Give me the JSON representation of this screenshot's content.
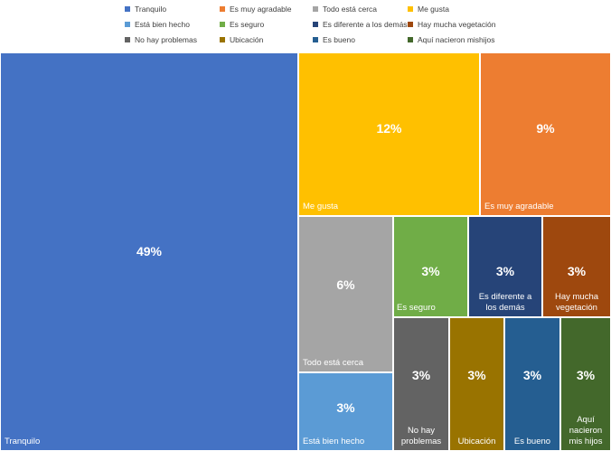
{
  "chart_data": {
    "type": "treemap",
    "title": "",
    "legend_position": "top",
    "series": [
      {
        "name": "Tranquilo",
        "value": 49,
        "label": "49%",
        "color": "#4472C4"
      },
      {
        "name": "Es muy agradable",
        "value": 9,
        "label": "9%",
        "color": "#ED7D31"
      },
      {
        "name": "Todo está cerca",
        "value": 6,
        "label": "6%",
        "color": "#A5A5A5"
      },
      {
        "name": "Me gusta",
        "value": 12,
        "label": "12%",
        "color": "#FFC000"
      },
      {
        "name": "Está bien hecho",
        "value": 3,
        "label": "3%",
        "color": "#5B9BD5"
      },
      {
        "name": "Es seguro",
        "value": 3,
        "label": "3%",
        "color": "#70AD47"
      },
      {
        "name": "Es diferente a los demás",
        "value": 3,
        "label": "3%",
        "color": "#264478"
      },
      {
        "name": "Hay mucha vegetación",
        "value": 3,
        "label": "3%",
        "color": "#9E480E"
      },
      {
        "name": "No hay problemas",
        "value": 3,
        "label": "3%",
        "color": "#636363"
      },
      {
        "name": "Ubicación",
        "value": 3,
        "label": "3%",
        "color": "#997300"
      },
      {
        "name": "Es bueno",
        "value": 3,
        "label": "3%",
        "color": "#255E91"
      },
      {
        "name": "Aquí nacieron mishijos",
        "value": 3,
        "label": "3%",
        "color": "#43682B"
      }
    ],
    "tile_labels": {
      "Tranquilo": [
        "Tranquilo"
      ],
      "Es muy agradable": [
        "Es muy agradable"
      ],
      "Todo está cerca": [
        "Todo está cerca"
      ],
      "Me gusta": [
        "Me gusta"
      ],
      "Está bien hecho": [
        "Está bien hecho"
      ],
      "Es seguro": [
        "Es seguro"
      ],
      "Es diferente a los demás": [
        "Es diferente a",
        "los demás"
      ],
      "Hay mucha vegetación": [
        "Hay mucha",
        "vegetación"
      ],
      "No hay problemas": [
        "No hay",
        "problemas"
      ],
      "Ubicación": [
        "Ubicación"
      ],
      "Es bueno": [
        "Es bueno"
      ],
      "Aquí nacieron mishijos": [
        "Aquí",
        "nacieron",
        "mis hijos"
      ]
    }
  }
}
